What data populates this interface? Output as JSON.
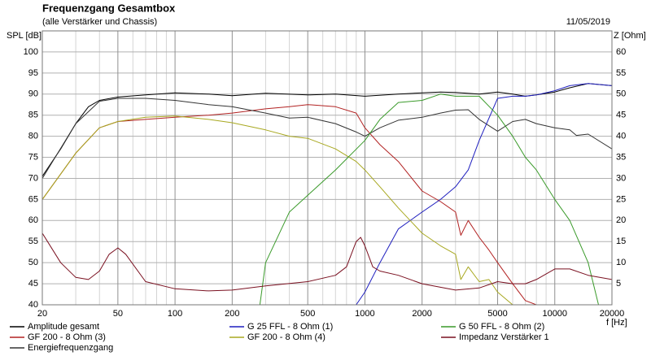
{
  "chart_data": {
    "type": "line",
    "title": "Frequenzgang Gesamtbox",
    "subtitle": "(alle Verstärker und Chassis)",
    "date": "11/05/2019",
    "y_label": "SPL [dB]",
    "y2_label": "Z [Ohm]",
    "x_label": "f [Hz]",
    "xscale": "log",
    "grid": true,
    "xlim": [
      20,
      20000
    ],
    "xticks": [
      20,
      50,
      100,
      200,
      500,
      1000,
      2000,
      5000,
      10000,
      20000
    ],
    "xgrid_minor": [
      30,
      40,
      60,
      70,
      80,
      90,
      300,
      400,
      600,
      700,
      800,
      900,
      3000,
      4000,
      6000,
      7000,
      8000,
      9000
    ],
    "ylim": [
      40,
      105
    ],
    "yticks": [
      40,
      45,
      50,
      55,
      60,
      65,
      70,
      75,
      80,
      85,
      90,
      95,
      100
    ],
    "y2lim": [
      0,
      65
    ],
    "y2ticks": [
      5,
      10,
      15,
      20,
      25,
      30,
      35,
      40,
      45,
      50,
      55,
      60
    ],
    "series": [
      {
        "name": "Amplitude gesamt",
        "color": "#000000",
        "x": [
          20,
          25,
          30,
          35,
          40,
          50,
          70,
          100,
          150,
          200,
          300,
          500,
          700,
          1000,
          1500,
          2000,
          2500,
          3000,
          4000,
          5000,
          6000,
          7000,
          8000,
          10000,
          12000,
          15000,
          20000
        ],
        "values": [
          70.5,
          77,
          83,
          87,
          88.5,
          89.3,
          89.8,
          90.3,
          90,
          89.6,
          90.2,
          89.8,
          90,
          89.5,
          90,
          90.3,
          90.5,
          90.4,
          90,
          90.5,
          90,
          89.5,
          89.8,
          90.5,
          91.5,
          92.5,
          92
        ]
      },
      {
        "name": "GF 200 - 8 Ohm (3)",
        "color": "#b22222",
        "x": [
          20,
          30,
          40,
          50,
          70,
          100,
          150,
          200,
          300,
          400,
          500,
          700,
          900,
          1000,
          1200,
          1500,
          2000,
          2500,
          3000,
          3200,
          3500,
          4000,
          4500,
          5000,
          6000,
          7000,
          8000
        ],
        "values": [
          65,
          76,
          82,
          83.5,
          84,
          84.5,
          85,
          85.5,
          86.5,
          87,
          87.5,
          87,
          85.5,
          82,
          78,
          74,
          67,
          64.5,
          62,
          56.5,
          60,
          56,
          53,
          50,
          45,
          41,
          40
        ]
      },
      {
        "name": "Energiefrequenzgang",
        "color": "#333333",
        "x": [
          20,
          30,
          40,
          50,
          70,
          100,
          150,
          200,
          300,
          400,
          500,
          700,
          900,
          1000,
          1200,
          1500,
          2000,
          2500,
          3000,
          3500,
          4000,
          5000,
          6000,
          7000,
          8000,
          10000,
          12000,
          13000,
          15000,
          20000
        ],
        "values": [
          70,
          83,
          88.3,
          89,
          89,
          88.5,
          87.5,
          87,
          85.5,
          84.3,
          84.5,
          83,
          81,
          80,
          82,
          83.8,
          84.5,
          85.5,
          86.2,
          86.3,
          84,
          81.2,
          83.5,
          84,
          83,
          82,
          81.5,
          80.2,
          80.5,
          77
        ]
      },
      {
        "name": "G 25 FFL - 8 Ohm (1)",
        "color": "#1f1fbf",
        "x": [
          20,
          900,
          1000,
          1200,
          1500,
          2000,
          2500,
          3000,
          3500,
          4000,
          5000,
          6000,
          7000,
          8000,
          10000,
          12000,
          15000,
          20000
        ],
        "values": [
          40,
          40,
          43,
          50,
          58,
          62,
          65,
          68,
          72,
          79,
          89,
          89.5,
          89.5,
          89.8,
          90.8,
          92,
          92.5,
          92
        ]
      },
      {
        "name": "GF 200 - 8 Ohm (4)",
        "color": "#a8a820",
        "x": [
          20,
          30,
          40,
          50,
          70,
          100,
          150,
          200,
          300,
          400,
          500,
          700,
          900,
          1000,
          1200,
          1500,
          2000,
          2500,
          3000,
          3200,
          3500,
          4000,
          4500,
          5000,
          6000
        ],
        "values": [
          65,
          76,
          82,
          83.5,
          84.5,
          84.8,
          84,
          83.2,
          81.5,
          80,
          79.5,
          77,
          74,
          72,
          68,
          63,
          57,
          54,
          52,
          46,
          49,
          45.5,
          46,
          43,
          40
        ]
      },
      {
        "name": "G 50 FFL - 8 Ohm (2)",
        "color": "#3a9a2a",
        "x": [
          20,
          280,
          300,
          400,
          500,
          700,
          1000,
          1200,
          1500,
          2000,
          2500,
          3000,
          4000,
          5000,
          6000,
          7000,
          8000,
          10000,
          12000,
          15000,
          17000,
          20000
        ],
        "values": [
          40,
          40,
          50,
          62,
          66,
          72,
          79,
          84,
          88,
          88.5,
          90,
          89.5,
          89.5,
          85,
          80,
          75,
          72,
          65,
          60,
          50,
          40,
          40
        ]
      },
      {
        "name": "Impedanz Verstärker 1",
        "color": "#7a1020",
        "axis": "y2",
        "x": [
          20,
          25,
          30,
          35,
          40,
          45,
          50,
          55,
          70,
          100,
          150,
          200,
          300,
          500,
          700,
          800,
          900,
          950,
          1000,
          1100,
          1200,
          1500,
          2000,
          3000,
          4000,
          5000,
          6000,
          7000,
          8000,
          10000,
          12000,
          15000,
          20000
        ],
        "values": [
          17,
          10,
          6.5,
          6,
          8,
          12,
          13.5,
          12,
          5.5,
          3.8,
          3.3,
          3.5,
          4.5,
          5.5,
          7,
          9,
          15,
          16,
          14,
          9,
          8,
          7,
          5,
          3.5,
          4,
          5.5,
          5,
          5,
          6,
          8.5,
          8.5,
          7,
          6
        ]
      }
    ]
  }
}
